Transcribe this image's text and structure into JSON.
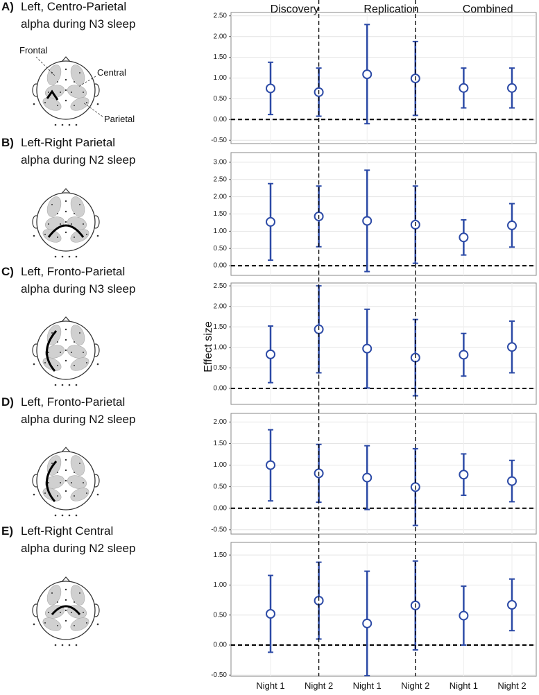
{
  "figure": {
    "groups": [
      "Discovery",
      "Replication",
      "Combined"
    ],
    "categories": [
      "Night 1",
      "Night 2",
      "Night 1",
      "Night 2",
      "Night 1",
      "Night 2"
    ],
    "ylabel": "Effect size",
    "annotations": [
      "Frontal",
      "Central",
      "Parietal"
    ]
  },
  "chart_data": [
    {
      "type": "errorbar",
      "label": "A)",
      "title": [
        "Left, Centro-Parietal",
        "alpha during N3 sleep"
      ],
      "color": "#2c4aa6",
      "grid": true,
      "reference_line": 0,
      "values": [
        0.75,
        0.66,
        1.09,
        0.99,
        0.76,
        0.76
      ],
      "lower": [
        0.12,
        0.08,
        -0.1,
        0.1,
        0.28,
        0.28
      ],
      "upper": [
        1.38,
        1.24,
        2.29,
        1.88,
        1.24,
        1.24
      ],
      "ylim": [
        -0.58,
        2.58
      ],
      "yticks": [
        {
          "value": -0.5,
          "label": "-0.50"
        },
        {
          "value": 0,
          "label": "0.00"
        },
        {
          "value": 0.5,
          "label": "0.50"
        },
        {
          "value": 1,
          "label": "1.00"
        },
        {
          "value": 1.5,
          "label": "1.50"
        },
        {
          "value": 2,
          "label": "2.00"
        },
        {
          "value": 2.5,
          "label": "2.50"
        }
      ]
    },
    {
      "type": "errorbar",
      "label": "B)",
      "title": [
        "Left-Right Parietal",
        "alpha during N2 sleep"
      ],
      "color": "#2c4aa6",
      "grid": true,
      "reference_line": 0,
      "values": [
        1.27,
        1.43,
        1.3,
        1.19,
        0.82,
        1.17
      ],
      "lower": [
        0.16,
        0.55,
        -0.17,
        0.07,
        0.31,
        0.54
      ],
      "upper": [
        2.38,
        2.31,
        2.77,
        2.31,
        1.33,
        1.8
      ],
      "ylim": [
        -0.28,
        3.28
      ],
      "yticks": [
        {
          "value": 0,
          "label": "0.00"
        },
        {
          "value": 0.5,
          "label": "0.50"
        },
        {
          "value": 1,
          "label": "1.00"
        },
        {
          "value": 1.5,
          "label": "1.50"
        },
        {
          "value": 2,
          "label": "2.00"
        },
        {
          "value": 2.5,
          "label": "2.50"
        },
        {
          "value": 3,
          "label": "3.00"
        }
      ]
    },
    {
      "type": "errorbar",
      "label": "C)",
      "title": [
        "Left, Fronto-Parietal",
        "alpha during N3 sleep"
      ],
      "color": "#2c4aa6",
      "grid": true,
      "reference_line": 0,
      "values": [
        0.83,
        1.44,
        0.97,
        0.75,
        0.82,
        1.01
      ],
      "lower": [
        0.14,
        0.38,
        0.01,
        -0.18,
        0.3,
        0.38
      ],
      "upper": [
        1.52,
        2.5,
        1.93,
        1.68,
        1.34,
        1.64
      ],
      "ylim": [
        -0.39,
        2.57
      ],
      "yticks": [
        {
          "value": 0,
          "label": "0.00"
        },
        {
          "value": 0.5,
          "label": "0.50"
        },
        {
          "value": 1,
          "label": "1.00"
        },
        {
          "value": 1.5,
          "label": "1.50"
        },
        {
          "value": 2,
          "label": "2.00"
        },
        {
          "value": 2.5,
          "label": "2.50"
        }
      ]
    },
    {
      "type": "errorbar",
      "label": "D)",
      "title": [
        "Left, Fronto-Parietal",
        "alpha during N2 sleep"
      ],
      "color": "#2c4aa6",
      "grid": true,
      "reference_line": 0,
      "values": [
        1.0,
        0.81,
        0.71,
        0.49,
        0.78,
        0.63
      ],
      "lower": [
        0.17,
        0.14,
        -0.03,
        -0.4,
        0.3,
        0.15
      ],
      "upper": [
        1.82,
        1.48,
        1.45,
        1.38,
        1.26,
        1.11
      ],
      "ylim": [
        -0.6,
        2.2
      ],
      "yticks": [
        {
          "value": -0.5,
          "label": "-0.50"
        },
        {
          "value": 0,
          "label": "0.00"
        },
        {
          "value": 0.5,
          "label": "0.50"
        },
        {
          "value": 1,
          "label": "1.00"
        },
        {
          "value": 1.5,
          "label": "1.50"
        },
        {
          "value": 2,
          "label": "2.00"
        }
      ]
    },
    {
      "type": "errorbar",
      "label": "E)",
      "title": [
        "Left-Right Central",
        "alpha during N2 sleep"
      ],
      "color": "#2c4aa6",
      "grid": true,
      "reference_line": 0,
      "values": [
        0.52,
        0.74,
        0.36,
        0.66,
        0.49,
        0.67
      ],
      "lower": [
        -0.12,
        0.1,
        -0.51,
        -0.08,
        0.0,
        0.24
      ],
      "upper": [
        1.16,
        1.38,
        1.23,
        1.4,
        0.98,
        1.1
      ],
      "ylim": [
        -0.52,
        1.71
      ],
      "yticks": [
        {
          "value": -0.5,
          "label": "-0.50"
        },
        {
          "value": 0,
          "label": "0.00"
        },
        {
          "value": 0.5,
          "label": "0.50"
        },
        {
          "value": 1,
          "label": "1.00"
        },
        {
          "value": 1.5,
          "label": "1.50"
        }
      ]
    }
  ]
}
